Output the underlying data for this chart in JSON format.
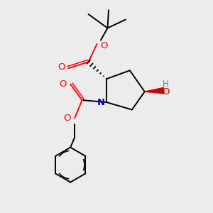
{
  "bg_color": "#ececec",
  "bond_color": "#000000",
  "oxygen_color": "#ff0000",
  "nitrogen_color": "#0000cc",
  "oh_color": "#5c8a8a",
  "figsize": [
    3.0,
    3.0
  ],
  "dpi": 100,
  "xlim": [
    0,
    10
  ],
  "ylim": [
    0,
    10
  ]
}
